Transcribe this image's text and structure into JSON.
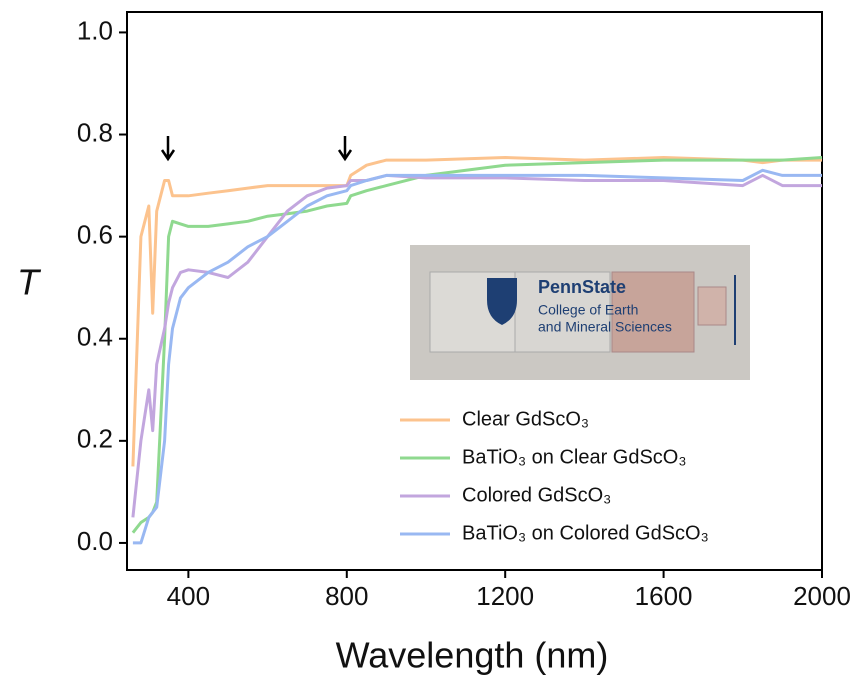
{
  "chart_data": {
    "type": "line",
    "xlabel": "Wavelength (nm)",
    "ylabel": "T",
    "xlim": [
      245,
      2000
    ],
    "ylim": [
      -0.053,
      1.04
    ],
    "xticks": [
      400,
      800,
      1200,
      1600,
      2000
    ],
    "yticks": [
      {
        "value": 0,
        "label": "0.0"
      },
      0.2,
      0.4,
      0.6,
      0.8,
      {
        "value": 1,
        "label": "1.0"
      }
    ],
    "x": [
      260,
      280,
      300,
      310,
      320,
      340,
      350,
      360,
      380,
      400,
      450,
      500,
      550,
      600,
      650,
      700,
      750,
      800,
      810,
      850,
      900,
      1000,
      1200,
      1400,
      1600,
      1800,
      1850,
      1900,
      2000
    ],
    "series": [
      {
        "name": "Clear GdScO₃",
        "color": "#fcc38e",
        "values": [
          0.15,
          0.6,
          0.66,
          0.45,
          0.65,
          0.71,
          0.71,
          0.68,
          0.68,
          0.68,
          0.685,
          0.69,
          0.695,
          0.7,
          0.7,
          0.7,
          0.7,
          0.7,
          0.72,
          0.74,
          0.75,
          0.75,
          0.755,
          0.75,
          0.755,
          0.75,
          0.745,
          0.75,
          0.75
        ]
      },
      {
        "name": "BaTiO₃ on Clear GdScO₃",
        "color": "#8fd98f",
        "values": [
          0.02,
          0.04,
          0.05,
          0.06,
          0.08,
          0.4,
          0.6,
          0.63,
          0.625,
          0.62,
          0.62,
          0.625,
          0.63,
          0.64,
          0.645,
          0.65,
          0.66,
          0.665,
          0.68,
          0.69,
          0.7,
          0.72,
          0.74,
          0.745,
          0.75,
          0.75,
          0.75,
          0.75,
          0.755
        ]
      },
      {
        "name": "Colored GdScO₃",
        "color": "#c2a6de",
        "values": [
          0.05,
          0.2,
          0.3,
          0.22,
          0.35,
          0.42,
          0.47,
          0.5,
          0.53,
          0.535,
          0.53,
          0.52,
          0.55,
          0.6,
          0.65,
          0.68,
          0.695,
          0.7,
          0.71,
          0.71,
          0.72,
          0.715,
          0.715,
          0.71,
          0.71,
          0.7,
          0.72,
          0.7,
          0.7
        ]
      },
      {
        "name": "BaTiO₃ on Colored GdScO₃",
        "color": "#99b8f2",
        "values": [
          0.0,
          0.0,
          0.05,
          0.06,
          0.07,
          0.2,
          0.35,
          0.42,
          0.48,
          0.5,
          0.53,
          0.55,
          0.58,
          0.6,
          0.63,
          0.66,
          0.68,
          0.69,
          0.7,
          0.71,
          0.72,
          0.72,
          0.72,
          0.72,
          0.715,
          0.71,
          0.73,
          0.72,
          0.72
        ]
      }
    ],
    "inset": {
      "brand": "PennState",
      "line1": "College of Earth",
      "line2": "and Mineral Sciences"
    }
  }
}
